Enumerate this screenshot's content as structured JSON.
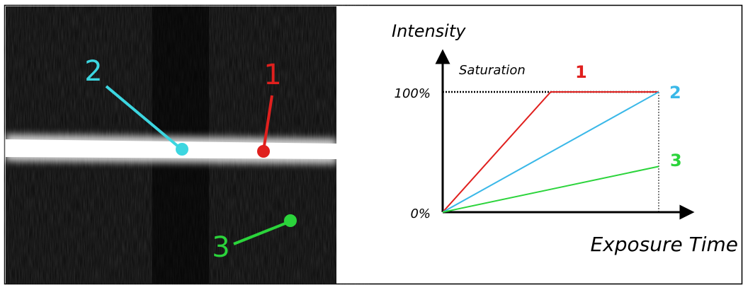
{
  "photo": {
    "labels": [
      "1",
      "2",
      "3"
    ]
  },
  "chart_data": {
    "type": "line",
    "y_label": "Intensity",
    "x_label": "Exposure Time",
    "annotation": "Saturation",
    "x": [
      0,
      0.5,
      1
    ],
    "xlim": [
      0,
      1.15
    ],
    "ylim": [
      0,
      100
    ],
    "yticks": [
      {
        "value": 0,
        "label": "0%"
      },
      {
        "value": 100,
        "label": "100%"
      }
    ],
    "series": [
      {
        "name": "1",
        "color": "#e0201e",
        "values": [
          0,
          100,
          100
        ]
      },
      {
        "name": "2",
        "color": "#3ab8e8",
        "values": [
          0,
          50,
          100
        ]
      },
      {
        "name": "3",
        "color": "#2bd43b",
        "values": [
          0,
          19,
          38
        ]
      }
    ]
  }
}
